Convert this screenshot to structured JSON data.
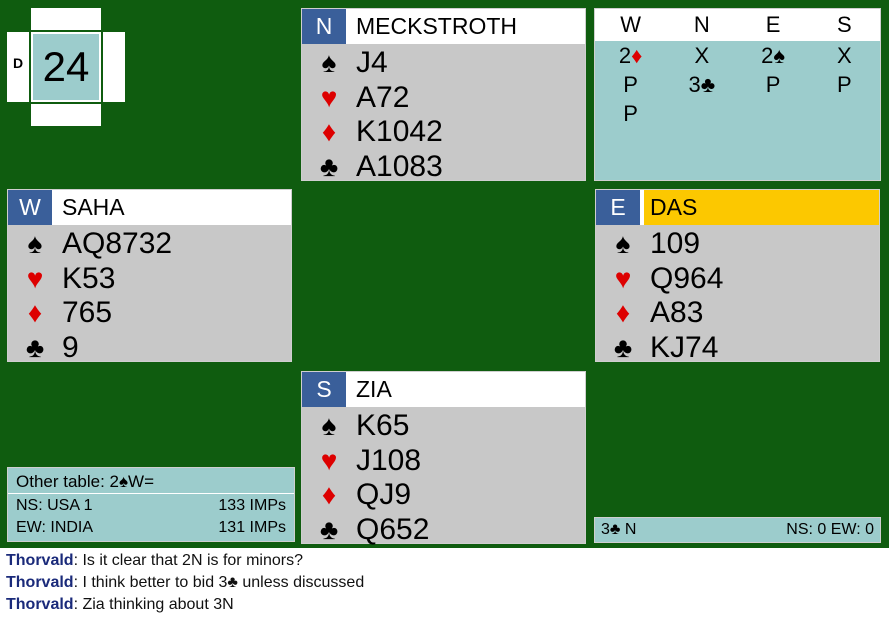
{
  "board": {
    "number": "24",
    "dealer": "D"
  },
  "hands": {
    "north": {
      "seat": "N",
      "name": "MECKSTROTH",
      "spades": "J4",
      "hearts": "A72",
      "diamonds": "K1042",
      "clubs": "A1083"
    },
    "west": {
      "seat": "W",
      "name": "SAHA",
      "spades": "AQ8732",
      "hearts": "K53",
      "diamonds": "765",
      "clubs": "9"
    },
    "east": {
      "seat": "E",
      "name": "DAS",
      "spades": "109",
      "hearts": "Q964",
      "diamonds": "A83",
      "clubs": "KJ74"
    },
    "south": {
      "seat": "S",
      "name": "ZIA",
      "spades": "K65",
      "hearts": "J108",
      "diamonds": "QJ9",
      "clubs": "Q652"
    }
  },
  "suit_symbols": {
    "spades": "♠",
    "hearts": "♥",
    "diamonds": "♦",
    "clubs": "♣"
  },
  "auction": {
    "headers": [
      "W",
      "N",
      "E",
      "S"
    ],
    "rows": [
      [
        {
          "level": "2",
          "suit": "♦",
          "red": true
        },
        {
          "level": "X"
        },
        {
          "level": "2",
          "suit": "♠"
        },
        {
          "level": "X"
        }
      ],
      [
        {
          "level": "P"
        },
        {
          "level": "3",
          "suit": "♣"
        },
        {
          "level": "P"
        },
        {
          "level": "P"
        }
      ],
      [
        {
          "level": "P"
        },
        {
          "level": ""
        },
        {
          "level": ""
        },
        {
          "level": ""
        }
      ]
    ]
  },
  "other_table": {
    "text": "Other table: 2♠W=",
    "ns_label": "NS: USA 1",
    "ns_imps": "133 IMPs",
    "ew_label": "EW: INDIA",
    "ew_imps": "131 IMPs"
  },
  "contract": {
    "text": "3♣ N",
    "score": "NS: 0 EW: 0"
  },
  "chat": [
    {
      "who": "Thorvald",
      "msg": ": Is it clear that 2N is for minors?"
    },
    {
      "who": "Thorvald",
      "msg": ": I think better to bid 3♣ unless discussed"
    },
    {
      "who": "Thorvald",
      "msg": ": Zia thinking about 3N"
    }
  ],
  "colors": {
    "felt": "#0f5c0f",
    "seat_badge": "#3a5f9a",
    "active_player": "#fcc800",
    "panel": "#9ccccc",
    "hand_bg": "#c8c8c8",
    "red_suit": "#dd0000"
  }
}
